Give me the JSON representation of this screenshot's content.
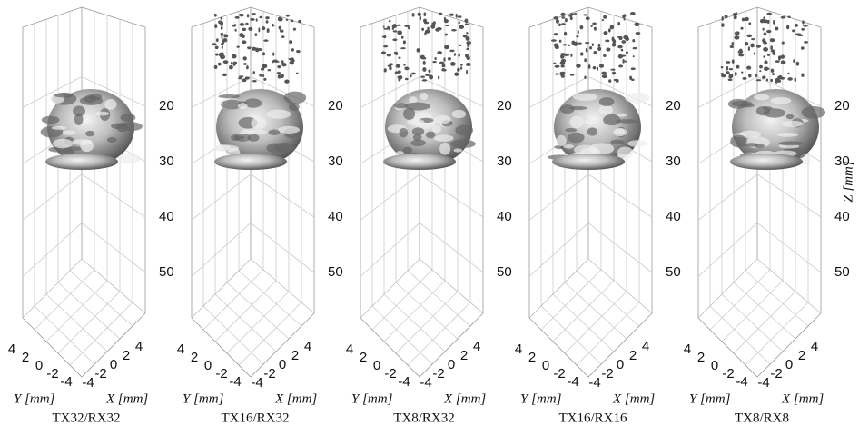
{
  "panels": [
    {
      "caption": "TX32/RX32"
    },
    {
      "caption": "TX16/RX32"
    },
    {
      "caption": "TX8/RX32"
    },
    {
      "caption": "TX16/RX16"
    },
    {
      "caption": "TX8/RX8"
    }
  ],
  "axes": {
    "z_ticks": [
      20,
      30,
      40,
      50
    ],
    "x_ticks": [
      -4,
      -2,
      0,
      2,
      4
    ],
    "y_ticks": [
      4,
      2,
      0,
      -2,
      -4
    ],
    "x_label": "X [mm]",
    "y_label": "Y [mm]",
    "z_label": "Z [mm]"
  }
}
